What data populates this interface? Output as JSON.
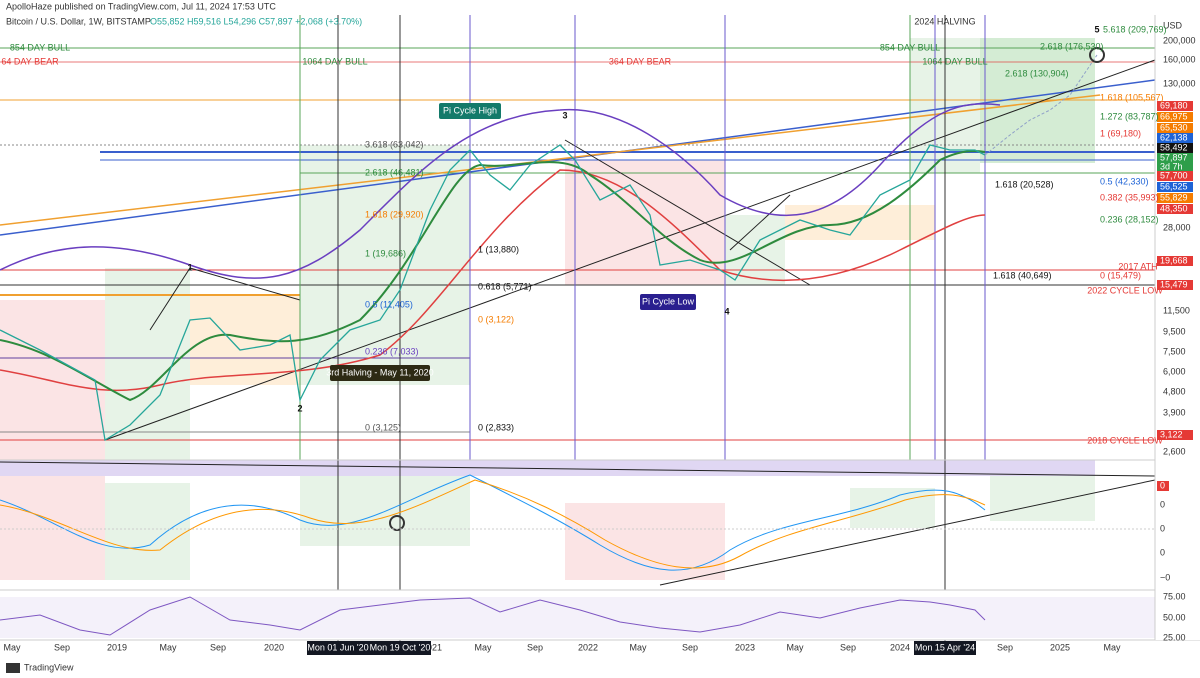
{
  "header": {
    "publisher": "ApolloHaze published on TradingView.com, Jul 11, 2024 17:53 UTC",
    "symbol": "Bitcoin / U.S. Dollar, 1W, BITSTAMP",
    "ohlc": "O55,852 H59,516 L54,296 C57,897 +2,068 (+3.70%)"
  },
  "price_axis": {
    "currency": "USD",
    "labels": [
      "200,000",
      "160,000",
      "130,000",
      "28,000",
      "11,500",
      "9,500",
      "7,500",
      "6,000",
      "4,800",
      "3,900",
      "2,600"
    ],
    "badges": [
      "69,180",
      "66,975",
      "65,530",
      "62,138",
      "58,492",
      "57,897",
      "3d 7h",
      "57,700",
      "56,525",
      "55,829",
      "48,350",
      "19,668",
      "15,479",
      "3,122"
    ]
  },
  "macd_axis": {
    "badge": "0",
    "labels": [
      "0",
      "0",
      "0",
      "−0"
    ]
  },
  "rsi_axis": {
    "labels": [
      "75.00",
      "50.00",
      "25.00"
    ]
  },
  "time_axis": {
    "labels": [
      "May",
      "Sep",
      "2019",
      "May",
      "Sep",
      "2020",
      "2021",
      "May",
      "Sep",
      "2022",
      "May",
      "Sep",
      "2023",
      "May",
      "Sep",
      "2024",
      "Sep",
      "2025",
      "May"
    ],
    "markers": [
      "Mon 01 Jun '20",
      "Mon 19 Oct '20",
      "Mon 15 Apr '24"
    ]
  },
  "annotations": {
    "cycles": [
      "854 DAY BULL",
      "854 DAY BULL",
      "64 DAY BEAR",
      "1064 DAY BULL",
      "1064 DAY BULL",
      "364 DAY BEAR",
      "2024 HALVING"
    ],
    "badges": [
      "Pi Cycle High",
      "Pi Cycle Low",
      "3rd Halving - May 11, 2020"
    ],
    "waves": [
      "1",
      "2",
      "3",
      "4",
      "5"
    ],
    "levels": [
      "2017 ATH",
      "2022 CYCLE LOW",
      "2018 CYCLE LOW"
    ],
    "fibs": [
      "3.618 (63,042)",
      "2.618 (46,481)",
      "1.618 (29,920)",
      "1 (19,686)",
      "0.5 (11,405)",
      "0.236 (7,033)",
      "0 (3,125)",
      "5.618 (209,769)",
      "2.618 (176,530)",
      "2.618 (130,904)",
      "1.618 (105,567)",
      "1.272 (83,787)",
      "1 (69,180)",
      "0.5 (42,330)",
      "0.382 (35,993)",
      "0.236 (28,152)",
      "0 (15,479)",
      "1.618 (40,649)",
      "1.618 (20,528)",
      "1 (13,880)",
      "0.618 (5,771)",
      "0 (3,122)",
      "0 (2,833)"
    ]
  },
  "brand": "TradingView"
}
